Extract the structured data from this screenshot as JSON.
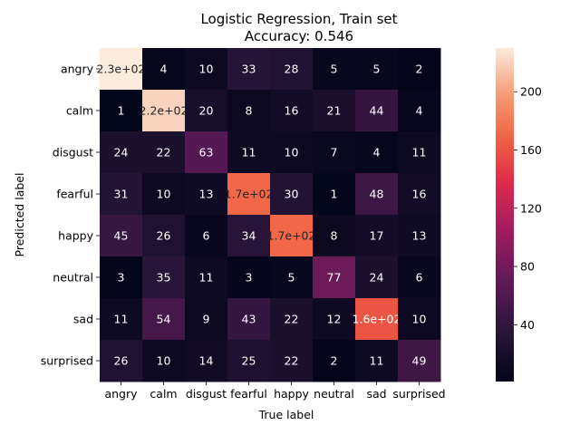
{
  "chart_data": {
    "type": "heatmap",
    "title_line1": "Logistic Regression, Train set",
    "title_line2": "Accuracy: 0.546",
    "xlabel": "True label",
    "ylabel": "Predicted label",
    "x_categories": [
      "angry",
      "calm",
      "disgust",
      "fearful",
      "happy",
      "neutral",
      "sad",
      "surprised"
    ],
    "y_categories": [
      "angry",
      "calm",
      "disgust",
      "fearful",
      "happy",
      "neutral",
      "sad",
      "surprised"
    ],
    "values": [
      [
        230,
        4,
        10,
        33,
        28,
        5,
        5,
        2
      ],
      [
        1,
        220,
        20,
        8,
        16,
        21,
        44,
        4
      ],
      [
        24,
        22,
        63,
        11,
        10,
        7,
        4,
        11
      ],
      [
        31,
        10,
        13,
        170,
        30,
        1,
        48,
        16
      ],
      [
        45,
        26,
        6,
        34,
        170,
        8,
        17,
        13
      ],
      [
        3,
        35,
        11,
        3,
        5,
        77,
        24,
        6
      ],
      [
        11,
        54,
        9,
        43,
        22,
        12,
        160,
        10
      ],
      [
        26,
        10,
        14,
        25,
        22,
        2,
        11,
        49
      ]
    ],
    "cell_labels": [
      [
        "2.3e+02",
        "4",
        "10",
        "33",
        "28",
        "5",
        "5",
        "2"
      ],
      [
        "1",
        "2.2e+02",
        "20",
        "8",
        "16",
        "21",
        "44",
        "4"
      ],
      [
        "24",
        "22",
        "63",
        "11",
        "10",
        "7",
        "4",
        "11"
      ],
      [
        "31",
        "10",
        "13",
        "1.7e+02",
        "30",
        "1",
        "48",
        "16"
      ],
      [
        "45",
        "26",
        "6",
        "34",
        "1.7e+02",
        "8",
        "17",
        "13"
      ],
      [
        "3",
        "35",
        "11",
        "3",
        "5",
        "77",
        "24",
        "6"
      ],
      [
        "11",
        "54",
        "9",
        "43",
        "22",
        "12",
        "1.6e+02",
        "10"
      ],
      [
        "26",
        "10",
        "14",
        "25",
        "22",
        "2",
        "11",
        "49"
      ]
    ],
    "colorbar": {
      "vmin": 1,
      "vmax": 230,
      "ticks": [
        40,
        80,
        120,
        160,
        200
      ],
      "tick_labels": [
        "40",
        "80",
        "120",
        "160",
        "200"
      ],
      "colormap": "rocket"
    }
  }
}
